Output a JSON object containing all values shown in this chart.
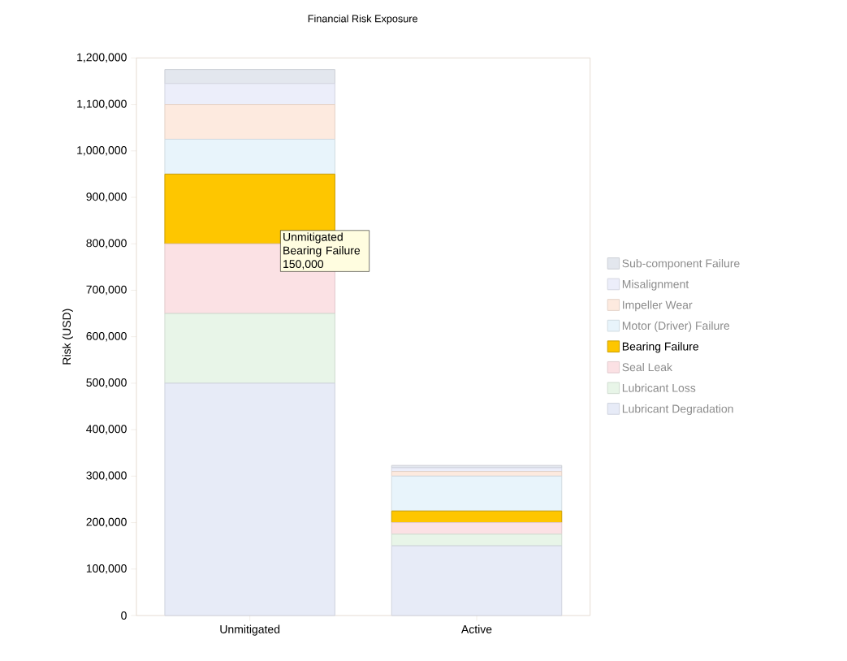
{
  "chart_data": {
    "type": "bar",
    "title": "Financial Risk Exposure",
    "ylabel": "Risk (USD)",
    "stacked": true,
    "categories": [
      "Unmitigated",
      "Active"
    ],
    "series": [
      {
        "name": "Lubricant Degradation",
        "color": "#e7ebf7",
        "values": [
          500000,
          150000
        ]
      },
      {
        "name": "Lubricant Loss",
        "color": "#e8f5e8",
        "values": [
          150000,
          25000
        ]
      },
      {
        "name": "Seal Leak",
        "color": "#fbe1e4",
        "values": [
          150000,
          25000
        ]
      },
      {
        "name": "Bearing Failure",
        "color": "#fec600",
        "values": [
          150000,
          25000
        ]
      },
      {
        "name": "Motor (Driver) Failure",
        "color": "#e8f4fb",
        "values": [
          75000,
          75000
        ]
      },
      {
        "name": "Impeller Wear",
        "color": "#fdeadf",
        "values": [
          75000,
          10000
        ]
      },
      {
        "name": "Misalignment",
        "color": "#eceefa",
        "values": [
          45000,
          8000
        ]
      },
      {
        "name": "Sub-component Failure",
        "color": "#e3e7ee",
        "values": [
          30000,
          5000
        ]
      }
    ],
    "ylim": [
      0,
      1200000
    ],
    "yticks": [
      {
        "value": 0,
        "label": "0"
      },
      {
        "value": 100000,
        "label": "100,000"
      },
      {
        "value": 200000,
        "label": "200,000"
      },
      {
        "value": 300000,
        "label": "300,000"
      },
      {
        "value": 400000,
        "label": "400,000"
      },
      {
        "value": 500000,
        "label": "500,000"
      },
      {
        "value": 600000,
        "label": "600,000"
      },
      {
        "value": 700000,
        "label": "700,000"
      },
      {
        "value": 800000,
        "label": "800,000"
      },
      {
        "value": 900000,
        "label": "900,000"
      },
      {
        "value": 1000000,
        "label": "1,000,000"
      },
      {
        "value": 1100000,
        "label": "1,100,000"
      },
      {
        "value": 1200000,
        "label": "1,200,000"
      }
    ],
    "annotations": [
      "Unmitigated Bearing Failure 150,000"
    ],
    "legend": "right"
  }
}
